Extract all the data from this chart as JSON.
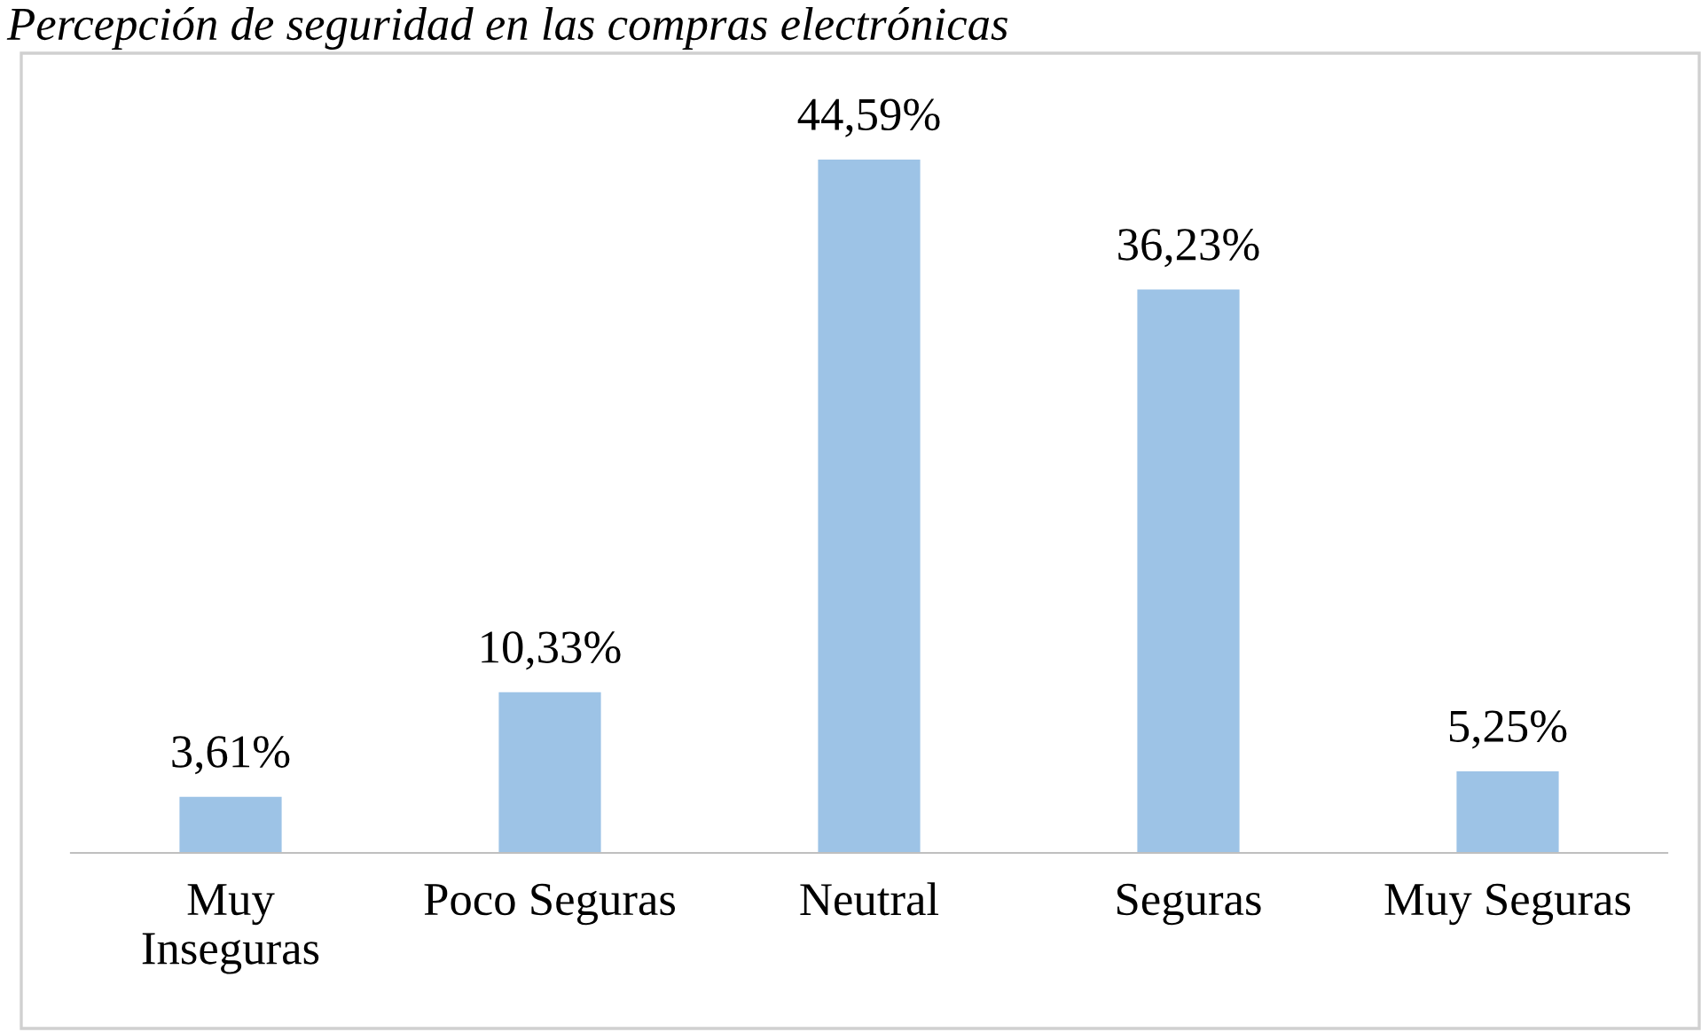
{
  "chart_data": {
    "type": "bar",
    "title": "Percepción de seguridad en las compras electrónicas",
    "categories": [
      "Muy\nInseguras",
      "Poco Seguras",
      "Neutral",
      "Seguras",
      "Muy Seguras"
    ],
    "values": [
      3.61,
      10.33,
      44.59,
      36.23,
      5.25
    ],
    "value_labels": [
      "3,61%",
      "10,33%",
      "44,59%",
      "36,23%",
      "5,25%"
    ],
    "color": "#9dc3e6",
    "grid": false,
    "legend": false
  }
}
